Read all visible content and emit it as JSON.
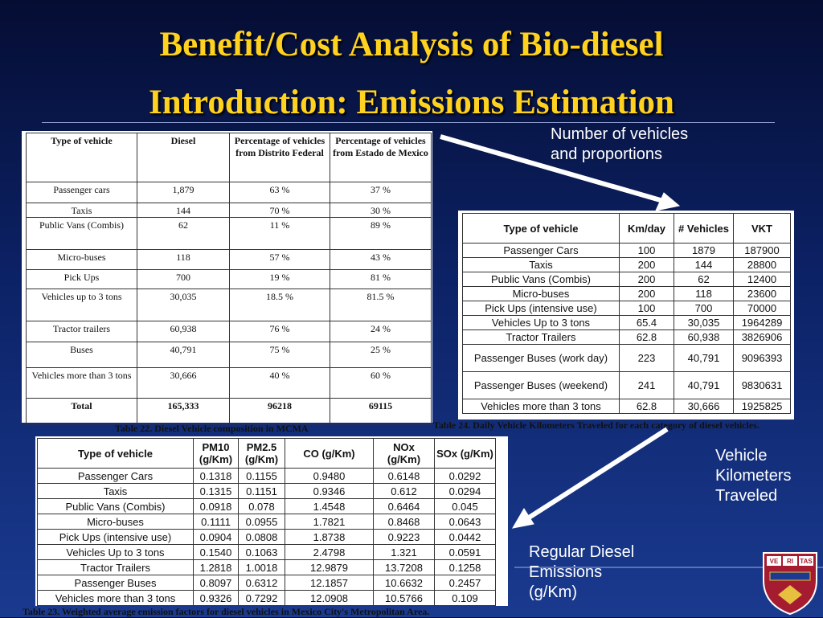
{
  "title": [
    "Benefit/Cost Analysis of Bio-diesel",
    "Introduction: Emissions Estimation"
  ],
  "labels": [
    [
      "Number of vehicles",
      "and proportions"
    ],
    [
      "Vehicle",
      "Kilometers",
      "Traveled"
    ],
    [
      "Regular Diesel",
      "Emissions",
      "(g/Km)"
    ]
  ],
  "tables": [
    {
      "caption": "Table 22.  Diesel Vehicle composition in MCMA",
      "headers": [
        "Type of vehicle",
        "Diesel",
        "Percentage of vehicles from Distrito Federal",
        "Percentage of vehicles from Estado de Mexico"
      ],
      "rows": [
        [
          "Passenger cars",
          "1,879",
          "63 %",
          "37 %"
        ],
        [
          "Taxis",
          "144",
          "70 %",
          "30 %"
        ],
        [
          "Public Vans (Combis)",
          "62",
          "11 %",
          "89 %"
        ],
        [
          "Micro-buses",
          "118",
          "57 %",
          "43 %"
        ],
        [
          "Pick Ups",
          "700",
          "19 %",
          "81 %"
        ],
        [
          "Vehicles up to 3 tons",
          "30,035",
          "18.5 %",
          "81.5 %"
        ],
        [
          "Tractor trailers",
          "60,938",
          "76 %",
          "24 %"
        ],
        [
          "Buses",
          "40,791",
          "75 %",
          "25 %"
        ],
        [
          "Vehicles more than 3 tons",
          "30,666",
          "40 %",
          "60 %"
        ],
        [
          "Total",
          "165,333",
          "96218",
          "69115"
        ]
      ]
    },
    {
      "caption": "Table 24. Daily Vehicle Kilometers Traveled for each category of diesel vehicles.",
      "headers": [
        "Type of vehicle",
        "Km/day",
        "# Vehicles",
        "VKT"
      ],
      "rows": [
        [
          "Passenger Cars",
          "100",
          "1879",
          "187900"
        ],
        [
          "Taxis",
          "200",
          "144",
          "28800"
        ],
        [
          "Public Vans (Combis)",
          "200",
          "62",
          "12400"
        ],
        [
          "Micro-buses",
          "200",
          "118",
          "23600"
        ],
        [
          "Pick Ups (intensive use)",
          "100",
          "700",
          "70000"
        ],
        [
          "Vehicles Up to 3 tons",
          "65.4",
          "30,035",
          "1964289"
        ],
        [
          "Tractor Trailers",
          "62.8",
          "60,938",
          "3826906"
        ],
        [
          "Passenger Buses (work day)",
          "223",
          "40,791",
          "9096393"
        ],
        [
          "Passenger Buses (weekend)",
          "241",
          "40,791",
          "9830631"
        ],
        [
          "Vehicles more than 3 tons",
          "62.8",
          "30,666",
          "1925825"
        ]
      ]
    },
    {
      "caption": "Table 23. Weighted average emission factors for diesel vehicles in Mexico City's Metropolitan Area.",
      "headers": [
        "Type of vehicle",
        "PM10 (g/Km)",
        "PM2.5 (g/Km)",
        "CO (g/Km)",
        "NOx (g/Km)",
        "SOx (g/Km)"
      ],
      "rows": [
        [
          "Passenger Cars",
          "0.1318",
          "0.1155",
          "0.9480",
          "0.6148",
          "0.0292"
        ],
        [
          "Taxis",
          "0.1315",
          "0.1151",
          "0.9346",
          "0.612",
          "0.0294"
        ],
        [
          "Public Vans (Combis)",
          "0.0918",
          "0.078",
          "1.4548",
          "0.6464",
          "0.045"
        ],
        [
          "Micro-buses",
          "0.1111",
          "0.0955",
          "1.7821",
          "0.8468",
          "0.0643"
        ],
        [
          "Pick Ups (intensive use)",
          "0.0904",
          "0.0808",
          "1.8738",
          "0.9223",
          "0.0442"
        ],
        [
          "Vehicles Up to 3 tons",
          "0.1540",
          "0.1063",
          "2.4798",
          "1.321",
          "0.0591"
        ],
        [
          "Tractor Trailers",
          "1.2818",
          "1.0018",
          "12.9879",
          "13.7208",
          "0.1258"
        ],
        [
          "Passenger Buses",
          "0.8097",
          "0.6312",
          "12.1857",
          "10.6632",
          "0.2457"
        ],
        [
          "Vehicles more than 3 tons",
          "0.9326",
          "0.7292",
          "12.0908",
          "10.5766",
          "0.109"
        ]
      ]
    }
  ],
  "logo": [
    "VE",
    "RI",
    "TAS"
  ]
}
